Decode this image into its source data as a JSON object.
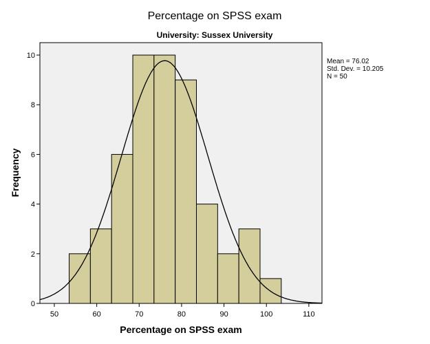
{
  "chart_data": {
    "type": "bar",
    "title": "Percentage on SPSS exam",
    "subtitle": "University: Sussex University",
    "xlabel": "Percentage on SPSS exam",
    "ylabel": "Frequency",
    "bins": [
      [
        53.5,
        58.5
      ],
      [
        58.5,
        63.5
      ],
      [
        63.5,
        68.5
      ],
      [
        68.5,
        73.5
      ],
      [
        73.5,
        78.5
      ],
      [
        78.5,
        83.5
      ],
      [
        83.5,
        88.5
      ],
      [
        88.5,
        93.5
      ],
      [
        93.5,
        98.5
      ],
      [
        98.5,
        103.5
      ]
    ],
    "values": [
      2,
      3,
      6,
      10,
      10,
      9,
      4,
      2,
      3,
      1
    ],
    "xlim": [
      46.6,
      113.1
    ],
    "ylim": [
      0,
      10.5
    ],
    "xticks": [
      50,
      60,
      70,
      80,
      90,
      100,
      110
    ],
    "yticks": [
      0,
      2,
      4,
      6,
      8,
      10
    ],
    "normal_curve": {
      "mean": 76.02,
      "sd": 10.205,
      "n": 50
    },
    "stats": [
      "Mean = 76.02",
      "Std. Dev. = 10.205",
      "N = 50"
    ],
    "grid": false,
    "colors": {
      "bar": "#d3ce9b",
      "plot_bg": "#f0f0f0",
      "curve": "#000000"
    }
  }
}
